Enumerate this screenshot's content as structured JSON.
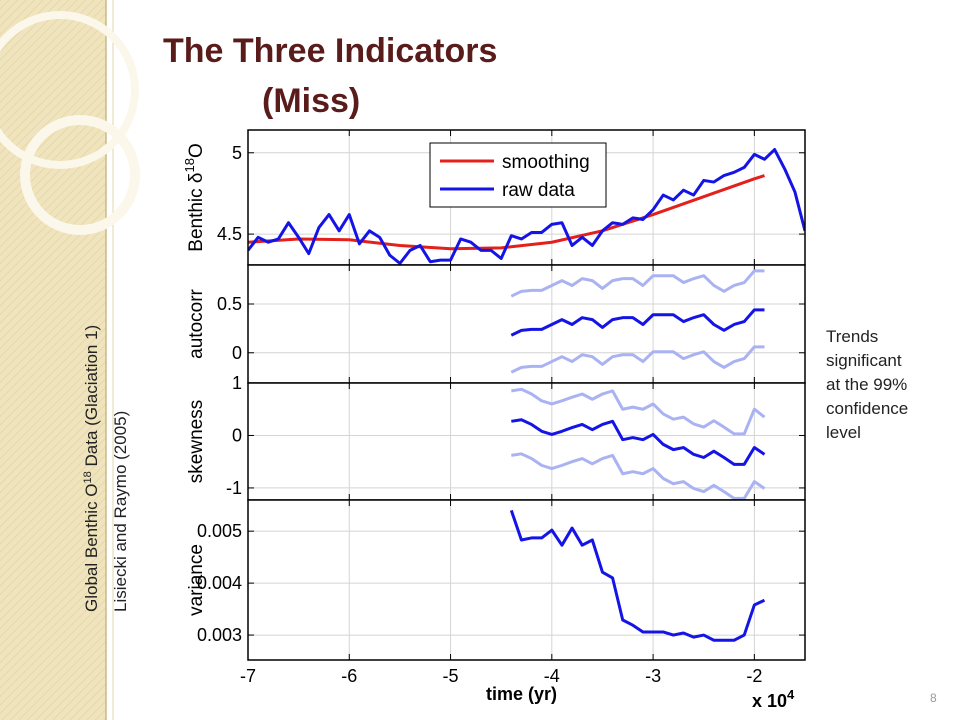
{
  "slide": {
    "title": "The Three Indicators",
    "subtitle": "(Miss)",
    "source_line1": [
      "Global Benthic O",
      "18",
      " Data (Glaciation 1)"
    ],
    "source_line2": "Lisiecki and Raymo (2005)",
    "note": [
      "Trends",
      "significant",
      "at the 99%",
      "confidence",
      "level"
    ],
    "page_number": "8"
  },
  "chart_data": [
    {
      "type": "line",
      "ylabel": [
        "Benthic δ",
        "18",
        "O"
      ],
      "ylim": [
        4.31,
        5.14
      ],
      "yticks": [
        4.5,
        5
      ],
      "grid": true,
      "legend": "upper center",
      "series": [
        {
          "name": "smoothing",
          "color": "#e3201b",
          "x": [
            -7,
            -6.5,
            -6,
            -5.5,
            -5,
            -4.5,
            -4,
            -3.5,
            -3,
            -2.5,
            -2,
            -1.9
          ],
          "values": [
            4.45,
            4.47,
            4.465,
            4.43,
            4.41,
            4.415,
            4.45,
            4.52,
            4.62,
            4.73,
            4.84,
            4.86
          ]
        },
        {
          "name": "raw data",
          "color": "#1414e6",
          "x": [
            -7,
            -6.9,
            -6.8,
            -6.7,
            -6.6,
            -6.5,
            -6.4,
            -6.3,
            -6.2,
            -6.1,
            -6,
            -5.9,
            -5.8,
            -5.7,
            -5.6,
            -5.5,
            -5.4,
            -5.3,
            -5.2,
            -5.1,
            -5,
            -4.9,
            -4.8,
            -4.7,
            -4.6,
            -4.5,
            -4.4,
            -4.3,
            -4.2,
            -4.1,
            -4,
            -3.9,
            -3.8,
            -3.7,
            -3.6,
            -3.5,
            -3.4,
            -3.3,
            -3.2,
            -3.1,
            -3,
            -2.9,
            -2.8,
            -2.7,
            -2.6,
            -2.5,
            -2.4,
            -2.3,
            -2.2,
            -2.1,
            -2,
            -1.9,
            -1.8,
            -1.7,
            -1.6,
            -1.5
          ],
          "values": [
            4.4,
            4.48,
            4.45,
            4.47,
            4.57,
            4.48,
            4.38,
            4.54,
            4.62,
            4.52,
            4.62,
            4.44,
            4.52,
            4.48,
            4.37,
            4.32,
            4.4,
            4.43,
            4.33,
            4.34,
            4.34,
            4.47,
            4.45,
            4.4,
            4.4,
            4.35,
            4.49,
            4.47,
            4.51,
            4.51,
            4.56,
            4.57,
            4.43,
            4.48,
            4.43,
            4.52,
            4.57,
            4.56,
            4.6,
            4.59,
            4.65,
            4.74,
            4.71,
            4.77,
            4.74,
            4.83,
            4.82,
            4.86,
            4.88,
            4.91,
            4.99,
            4.96,
            5.02,
            4.9,
            4.76,
            4.52
          ]
        }
      ]
    },
    {
      "type": "line",
      "ylabel": "autocorr",
      "ylim": [
        -0.31,
        0.9
      ],
      "yticks": [
        0,
        0.5
      ],
      "grid": true,
      "x": [
        -4.4,
        -4.3,
        -4.2,
        -4.1,
        -4,
        -3.9,
        -3.8,
        -3.7,
        -3.6,
        -3.5,
        -3.4,
        -3.3,
        -3.2,
        -3.1,
        -3,
        -2.9,
        -2.8,
        -2.7,
        -2.6,
        -2.5,
        -2.4,
        -2.3,
        -2.2,
        -2.1,
        -2,
        -1.9
      ],
      "series": [
        {
          "color": "#aab3f2",
          "values": [
            0.58,
            0.63,
            0.64,
            0.64,
            0.69,
            0.74,
            0.69,
            0.76,
            0.74,
            0.66,
            0.74,
            0.76,
            0.76,
            0.69,
            0.79,
            0.79,
            0.79,
            0.72,
            0.76,
            0.79,
            0.69,
            0.63,
            0.69,
            0.72,
            0.84,
            0.84
          ]
        },
        {
          "color": "#1414e6",
          "values": [
            0.18,
            0.23,
            0.24,
            0.24,
            0.29,
            0.34,
            0.29,
            0.36,
            0.34,
            0.26,
            0.34,
            0.36,
            0.36,
            0.29,
            0.39,
            0.39,
            0.39,
            0.32,
            0.36,
            0.39,
            0.29,
            0.23,
            0.29,
            0.32,
            0.44,
            0.44
          ]
        },
        {
          "color": "#aab3f2",
          "values": [
            -0.2,
            -0.15,
            -0.14,
            -0.14,
            -0.09,
            -0.04,
            -0.09,
            -0.02,
            -0.04,
            -0.12,
            -0.04,
            -0.02,
            -0.02,
            -0.09,
            0.01,
            0.01,
            0.01,
            -0.06,
            -0.02,
            0.01,
            -0.09,
            -0.15,
            -0.09,
            -0.06,
            0.06,
            0.06
          ]
        }
      ]
    },
    {
      "type": "line",
      "ylabel": "skewness",
      "ylim": [
        -1.23,
        1
      ],
      "yticks": [
        -1,
        0,
        1
      ],
      "grid": true,
      "x": [
        -4.4,
        -4.3,
        -4.2,
        -4.1,
        -4,
        -3.9,
        -3.8,
        -3.7,
        -3.6,
        -3.5,
        -3.4,
        -3.3,
        -3.2,
        -3.1,
        -3,
        -2.9,
        -2.8,
        -2.7,
        -2.6,
        -2.5,
        -2.4,
        -2.3,
        -2.2,
        -2.1,
        -2,
        -1.9
      ],
      "series": [
        {
          "color": "#aab3f2",
          "values": [
            0.85,
            0.88,
            0.79,
            0.66,
            0.6,
            0.66,
            0.73,
            0.79,
            0.69,
            0.79,
            0.85,
            0.5,
            0.54,
            0.5,
            0.6,
            0.41,
            0.31,
            0.35,
            0.22,
            0.16,
            0.28,
            0.16,
            0.03,
            0.03,
            0.5,
            0.35
          ]
        },
        {
          "color": "#1414e6",
          "values": [
            0.27,
            0.3,
            0.21,
            0.08,
            0.02,
            0.08,
            0.15,
            0.21,
            0.11,
            0.21,
            0.27,
            -0.08,
            -0.04,
            -0.08,
            0.02,
            -0.17,
            -0.27,
            -0.23,
            -0.36,
            -0.42,
            -0.3,
            -0.42,
            -0.55,
            -0.55,
            -0.23,
            -0.36
          ]
        },
        {
          "color": "#aab3f2",
          "values": [
            -0.38,
            -0.35,
            -0.44,
            -0.57,
            -0.63,
            -0.57,
            -0.5,
            -0.44,
            -0.54,
            -0.44,
            -0.38,
            -0.73,
            -0.69,
            -0.73,
            -0.63,
            -0.82,
            -0.92,
            -0.88,
            -1.01,
            -1.07,
            -0.95,
            -1.07,
            -1.2,
            -1.2,
            -0.88,
            -1.01
          ]
        }
      ]
    },
    {
      "type": "line",
      "ylabel": "variance",
      "xlabel": "time (yr)",
      "x_multiplier": [
        "x 10",
        "4"
      ],
      "xlim": [
        -7,
        -1.5
      ],
      "xticks": [
        -7,
        -6,
        -5,
        -4,
        -3,
        -2
      ],
      "ylim": [
        0.00252,
        0.0056
      ],
      "yticks": [
        0.003,
        0.004,
        0.005
      ],
      "grid": true,
      "x": [
        -4.4,
        -4.3,
        -4.2,
        -4.1,
        -4,
        -3.9,
        -3.8,
        -3.7,
        -3.6,
        -3.5,
        -3.4,
        -3.3,
        -3.2,
        -3.1,
        -3,
        -2.9,
        -2.8,
        -2.7,
        -2.6,
        -2.5,
        -2.4,
        -2.3,
        -2.2,
        -2.1,
        -2,
        -1.9
      ],
      "series": [
        {
          "color": "#1414e6",
          "values": [
            0.0054,
            0.00483,
            0.00487,
            0.00487,
            0.00502,
            0.00473,
            0.00506,
            0.00473,
            0.00483,
            0.00421,
            0.0041,
            0.00329,
            0.00319,
            0.00306,
            0.00306,
            0.00306,
            0.003,
            0.00304,
            0.00296,
            0.003,
            0.0029,
            0.0029,
            0.0029,
            0.003,
            0.00358,
            0.00367
          ]
        }
      ]
    }
  ]
}
